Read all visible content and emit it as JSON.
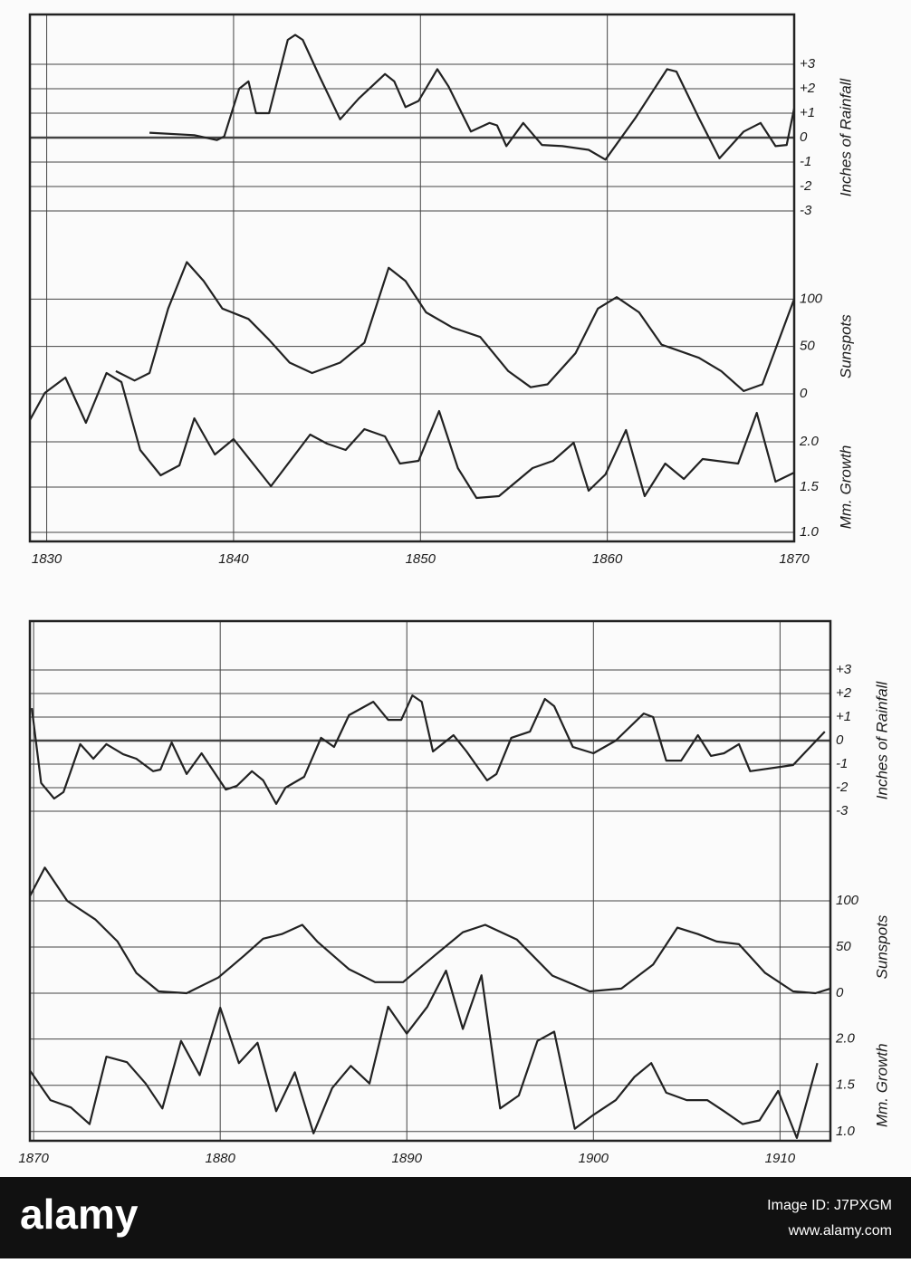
{
  "chart_data": [
    {
      "type": "line",
      "xlim": [
        1829.1,
        1870
      ],
      "xticks": [
        1830,
        1840,
        1850,
        1860,
        1870
      ],
      "panels": [
        {
          "ylabel": "Inches of Rainfall",
          "ylim": [
            -3,
            5
          ],
          "color": "#222222",
          "yticks": [
            {
              "value": 3,
              "label": "+3"
            },
            {
              "value": 2,
              "label": "+2"
            },
            {
              "value": 1,
              "label": "+1"
            },
            0,
            -1,
            -2,
            -3
          ],
          "x": [
            1835.5,
            1837.9,
            1839.1,
            1839.5,
            1840.3,
            1840.8,
            1841.2,
            1841.9,
            1842.9,
            1843.3,
            1843.7,
            1844.6,
            1845.7,
            1846.7,
            1848.1,
            1848.6,
            1849.2,
            1849.9,
            1850.9,
            1851.5,
            1852.7,
            1853.7,
            1854.1,
            1854.6,
            1855.5,
            1856.5,
            1857.6,
            1859.0,
            1859.9,
            1861.5,
            1863.2,
            1863.7,
            1864.9,
            1866.0,
            1867.3,
            1868.2,
            1869.0,
            1869.6,
            1870.0
          ],
          "values": [
            0.2,
            0.1,
            -0.1,
            0.05,
            2.0,
            2.3,
            1.0,
            1.0,
            4.0,
            4.2,
            4.0,
            2.5,
            0.75,
            1.6,
            2.6,
            2.3,
            1.25,
            1.5,
            2.8,
            2.1,
            0.25,
            0.6,
            0.5,
            -0.35,
            0.6,
            -0.3,
            -0.35,
            -0.5,
            -0.9,
            0.8,
            2.8,
            2.7,
            0.8,
            -0.85,
            0.25,
            0.6,
            -0.35,
            -0.3,
            1.2
          ]
        },
        {
          "ylabel": "Sunspots",
          "ylim": [
            0,
            150
          ],
          "color": "#222222",
          "yticks": [
            100,
            50,
            0
          ],
          "x": [
            1833.7,
            1834.7,
            1835.5,
            1836.5,
            1837.5,
            1838.4,
            1839.4,
            1840.8,
            1841.9,
            1843.0,
            1844.2,
            1845.7,
            1847.0,
            1848.3,
            1849.2,
            1850.3,
            1851.7,
            1853.2,
            1854.7,
            1855.9,
            1856.8,
            1858.3,
            1859.5,
            1860.5,
            1861.7,
            1862.9,
            1864.9,
            1866.1,
            1867.3,
            1868.3,
            1870.0
          ],
          "values": [
            24,
            14,
            22,
            90,
            139,
            119,
            90,
            79,
            57,
            33,
            22,
            33,
            54,
            133,
            119,
            86,
            70,
            60,
            24,
            7,
            10,
            43,
            90,
            102,
            86,
            52,
            38,
            24,
            3,
            10,
            100
          ]
        },
        {
          "ylabel": "Mm. Growth",
          "ylim": [
            0.9,
            2.5
          ],
          "color": "#222222",
          "yticks": [
            {
              "value": 2,
              "label": "2.0"
            },
            1.5,
            {
              "value": 1,
              "label": "1.0"
            }
          ],
          "x": [
            1829.1,
            1829.9,
            1831.0,
            1832.1,
            1833.2,
            1834.0,
            1835.0,
            1836.1,
            1837.1,
            1837.9,
            1839.0,
            1840.0,
            1842.0,
            1844.1,
            1845.0,
            1846.0,
            1847.0,
            1848.1,
            1848.9,
            1849.9,
            1851.0,
            1852.0,
            1853.0,
            1854.2,
            1856.0,
            1857.1,
            1858.2,
            1859.0,
            1859.9,
            1861.0,
            1862.0,
            1863.1,
            1864.1,
            1865.1,
            1867.0,
            1868.0,
            1869.0,
            1870.0
          ],
          "values": [
            2.24,
            2.54,
            2.71,
            2.21,
            2.76,
            2.66,
            1.91,
            1.63,
            1.74,
            2.26,
            1.86,
            2.03,
            1.51,
            2.08,
            1.98,
            1.91,
            2.14,
            2.06,
            1.76,
            1.79,
            2.34,
            1.71,
            1.38,
            1.4,
            1.71,
            1.79,
            1.99,
            1.46,
            1.64,
            2.13,
            1.4,
            1.76,
            1.59,
            1.81,
            1.76,
            2.32,
            1.56,
            1.66
          ]
        }
      ]
    },
    {
      "type": "line",
      "xlim": [
        1869.8,
        1912.7
      ],
      "xticks": [
        1870,
        1880,
        1890,
        1900,
        1910
      ],
      "panels": [
        {
          "ylabel": "Inches of Rainfall",
          "ylim": [
            -3,
            5
          ],
          "color": "#222222",
          "yticks": [
            {
              "value": 3,
              "label": "+3"
            },
            {
              "value": 2,
              "label": "+2"
            },
            {
              "value": 1,
              "label": "+1"
            },
            0,
            -1,
            -2,
            -3
          ],
          "x": [
            1869.9,
            1870.4,
            1871.1,
            1871.6,
            1872.5,
            1873.2,
            1873.9,
            1874.8,
            1875.5,
            1876.4,
            1876.8,
            1877.4,
            1878.2,
            1879.0,
            1880.3,
            1880.9,
            1881.7,
            1882.3,
            1883.0,
            1883.5,
            1884.5,
            1885.4,
            1886.1,
            1886.9,
            1888.2,
            1889.0,
            1889.7,
            1890.3,
            1890.8,
            1891.4,
            1892.5,
            1893.2,
            1894.3,
            1894.8,
            1895.6,
            1896.6,
            1897.4,
            1897.9,
            1898.9,
            1900.0,
            1901.2,
            1902.7,
            1903.2,
            1903.9,
            1904.7,
            1905.6,
            1906.3,
            1907.0,
            1907.8,
            1908.4,
            1910.7,
            1912.4
          ],
          "values": [
            1.38,
            -1.8,
            -2.46,
            -2.19,
            -0.15,
            -0.77,
            -0.15,
            -0.58,
            -0.77,
            -1.3,
            -1.23,
            -0.08,
            -1.42,
            -0.54,
            -2.08,
            -1.92,
            -1.3,
            -1.69,
            -2.69,
            -2.0,
            -1.54,
            0.12,
            -0.27,
            1.08,
            1.65,
            0.88,
            0.88,
            1.92,
            1.65,
            -0.46,
            0.23,
            -0.46,
            -1.69,
            -1.42,
            0.12,
            0.38,
            1.77,
            1.46,
            -0.27,
            -0.54,
            0,
            1.15,
            1.0,
            -0.85,
            -0.85,
            0.23,
            -0.65,
            -0.54,
            -0.15,
            -1.3,
            -1.04,
            0.38
          ]
        },
        {
          "ylabel": "Sunspots",
          "ylim": [
            0,
            150
          ],
          "color": "#222222",
          "yticks": [
            100,
            50,
            0
          ],
          "x": [
            1869.8,
            1870.6,
            1871.8,
            1873.3,
            1874.5,
            1875.5,
            1876.7,
            1878.2,
            1879.9,
            1881.3,
            1882.3,
            1883.3,
            1884.4,
            1885.2,
            1886.9,
            1888.3,
            1889.8,
            1891.5,
            1893.0,
            1894.2,
            1895.9,
            1897.8,
            1899.8,
            1901.5,
            1903.2,
            1904.5,
            1905.6,
            1906.6,
            1907.8,
            1909.2,
            1910.7,
            1911.9,
            1912.7
          ],
          "values": [
            105,
            136,
            100,
            80,
            56,
            22,
            2,
            0,
            17,
            41,
            59,
            64,
            74,
            56,
            26,
            12,
            12,
            41,
            66,
            74,
            58,
            19,
            2,
            5,
            31,
            71,
            64,
            56,
            53,
            22,
            2,
            0,
            5
          ]
        },
        {
          "ylabel": "Mm. Growth",
          "ylim": [
            0.9,
            2.8
          ],
          "color": "#222222",
          "yticks": [
            {
              "value": 2,
              "label": "2.0"
            },
            1.5,
            {
              "value": 1,
              "label": "1.0"
            }
          ],
          "x": [
            1869.8,
            1870.9,
            1872.0,
            1873.0,
            1873.9,
            1875.0,
            1876.0,
            1876.9,
            1877.9,
            1878.9,
            1880.0,
            1881.0,
            1882.0,
            1883.0,
            1884.0,
            1885.0,
            1886.0,
            1887.0,
            1888.0,
            1889.0,
            1890.0,
            1891.1,
            1892.1,
            1893.0,
            1894.0,
            1895.0,
            1896.0,
            1897.0,
            1897.9,
            1899.0,
            1900.0,
            1901.2,
            1902.2,
            1903.1,
            1903.9,
            1905.0,
            1906.1,
            1907.0,
            1908.0,
            1908.9,
            1909.9,
            1910.9,
            1912.0
          ],
          "values": [
            1.66,
            1.34,
            1.26,
            1.08,
            1.81,
            1.75,
            1.52,
            1.25,
            1.98,
            1.61,
            2.34,
            1.74,
            1.96,
            1.22,
            1.64,
            0.98,
            1.47,
            1.71,
            1.52,
            2.35,
            2.06,
            2.35,
            2.74,
            2.11,
            2.69,
            1.25,
            1.39,
            1.98,
            2.08,
            1.03,
            1.18,
            1.34,
            1.59,
            1.74,
            1.42,
            1.34,
            1.34,
            1.22,
            1.08,
            1.12,
            1.44,
            0.93,
            1.74
          ]
        }
      ]
    }
  ],
  "watermark": {
    "logo": "alamy",
    "image_id": "Image ID: J7PXGM",
    "url": "www.alamy.com"
  }
}
